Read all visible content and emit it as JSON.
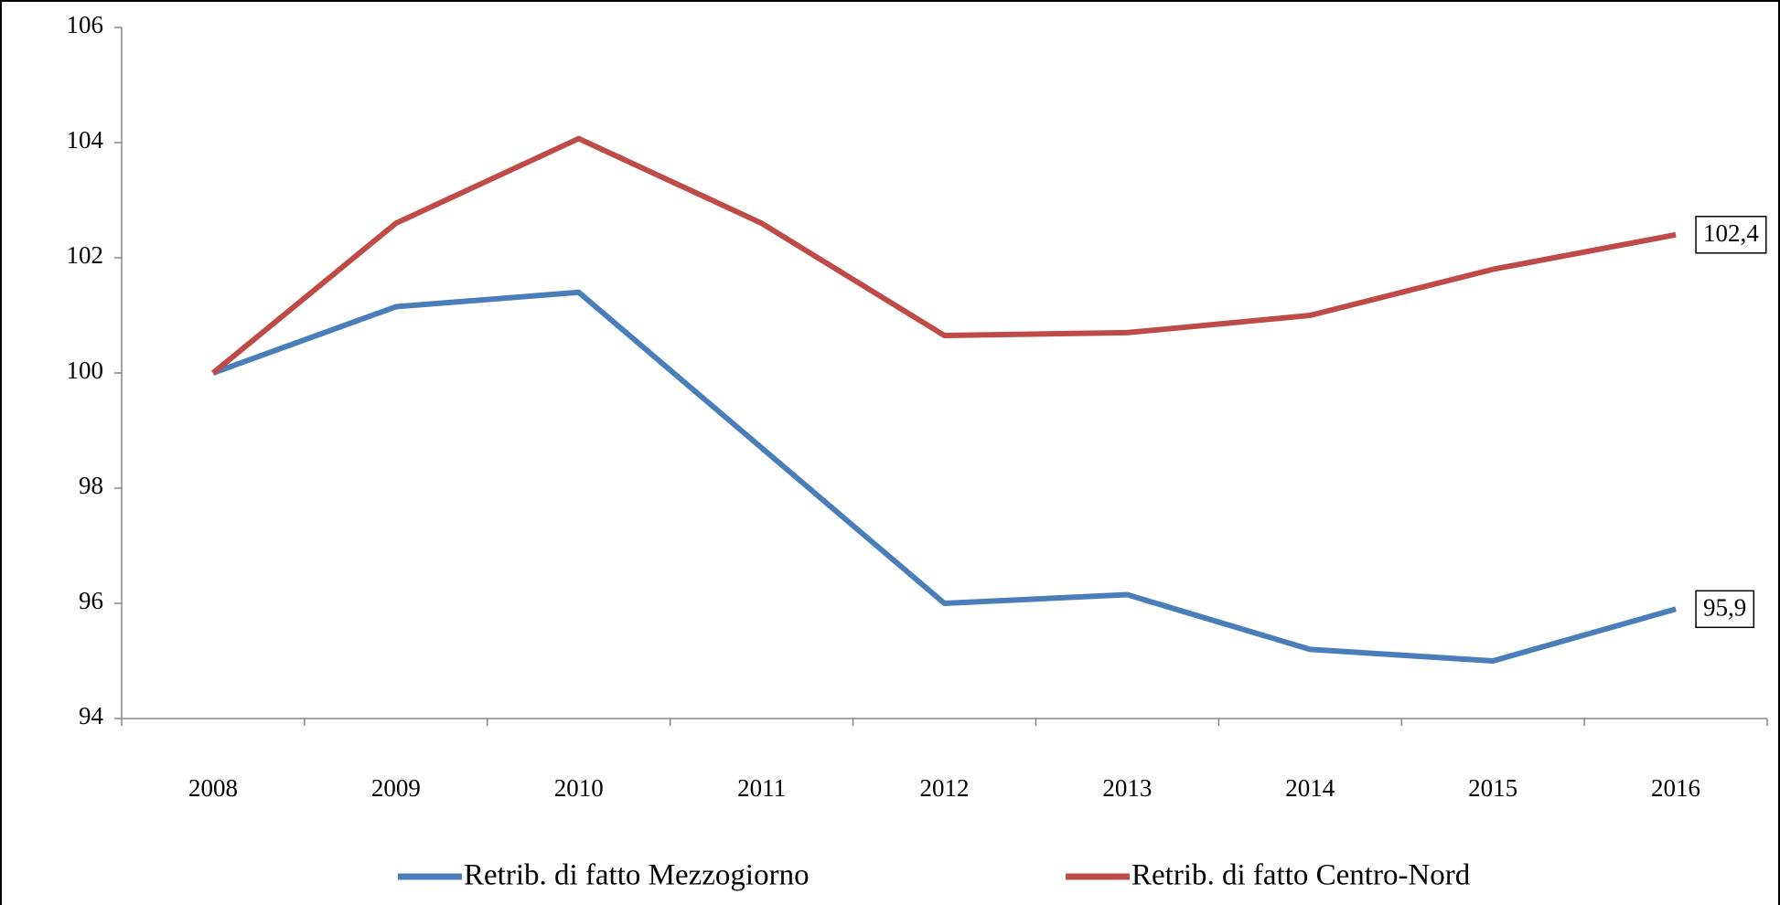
{
  "chart_data": {
    "type": "line",
    "categories": [
      "2008",
      "2009",
      "2010",
      "2011",
      "2012",
      "2013",
      "2014",
      "2015",
      "2016"
    ],
    "series": [
      {
        "name": "Retrib. di fatto Mezzogiorno",
        "color": "#4a7ebb",
        "values": [
          100,
          101.15,
          101.4,
          98.7,
          96.0,
          96.15,
          95.2,
          95.0,
          95.9
        ],
        "value_labels": [
          null,
          null,
          null,
          null,
          null,
          null,
          null,
          null,
          "95,9"
        ]
      },
      {
        "name": "Retrib. di fatto Centro-Nord",
        "color": "#be4b48",
        "values": [
          100,
          102.6,
          104.07,
          102.6,
          100.65,
          100.7,
          101.0,
          101.8,
          102.4
        ],
        "value_labels": [
          null,
          null,
          null,
          null,
          null,
          null,
          null,
          null,
          "102,4"
        ]
      }
    ],
    "ylim": [
      94,
      106
    ],
    "yticks": [
      94,
      96,
      98,
      100,
      102,
      104,
      106
    ],
    "grid": false,
    "legend": "bottom"
  }
}
